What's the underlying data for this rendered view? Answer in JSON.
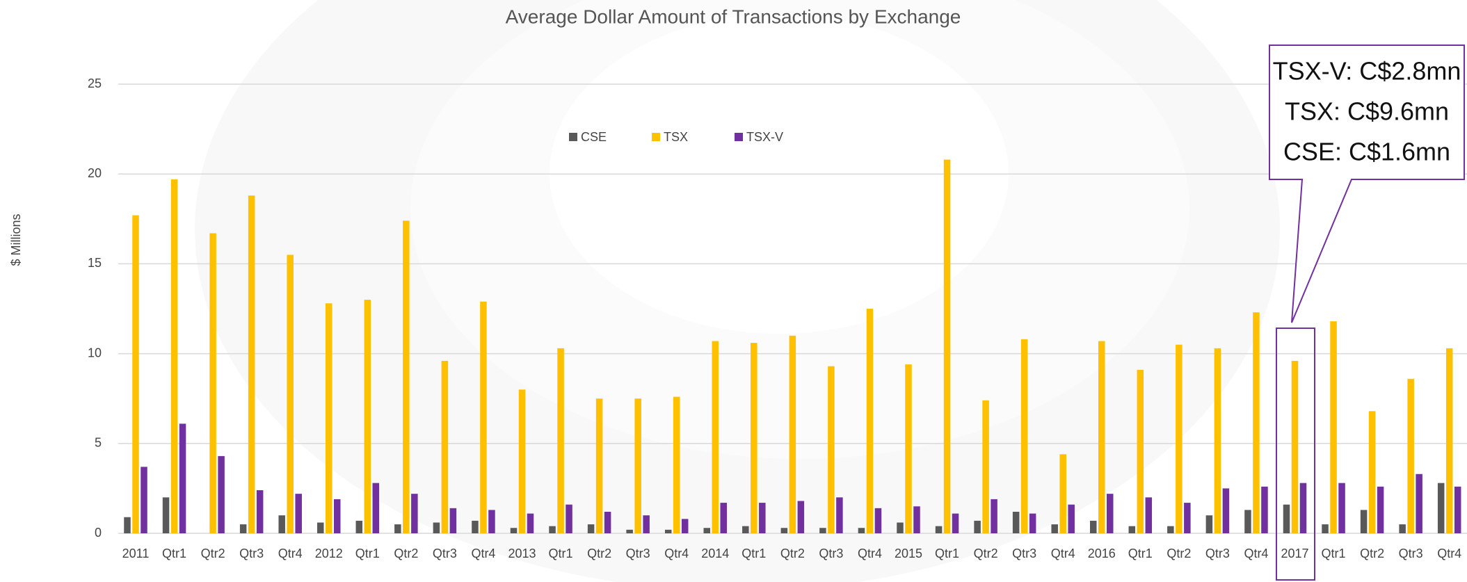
{
  "chart_data": {
    "type": "bar",
    "title": "Average Dollar Amount of Transactions by Exchange",
    "y_label": "$ Millions",
    "categories": [
      "2011",
      "Qtr1",
      "Qtr2",
      "Qtr3",
      "Qtr4",
      "2012",
      "Qtr1",
      "Qtr2",
      "Qtr3",
      "Qtr4",
      "2013",
      "Qtr1",
      "Qtr2",
      "Qtr3",
      "Qtr4",
      "2014",
      "Qtr1",
      "Qtr2",
      "Qtr3",
      "Qtr4",
      "2015",
      "Qtr1",
      "Qtr2",
      "Qtr3",
      "Qtr4",
      "2016",
      "Qtr1",
      "Qtr2",
      "Qtr3",
      "Qtr4",
      "2017",
      "Qtr1",
      "Qtr2",
      "Qtr3",
      "Qtr4"
    ],
    "series": [
      {
        "name": "CSE",
        "color": "#595959",
        "values": [
          0.9,
          2.0,
          null,
          0.5,
          1.0,
          0.6,
          0.7,
          0.5,
          0.6,
          0.7,
          0.3,
          0.4,
          0.5,
          0.2,
          0.2,
          0.3,
          0.4,
          0.3,
          0.3,
          0.3,
          0.6,
          0.4,
          0.7,
          1.2,
          0.5,
          0.7,
          0.4,
          0.4,
          1.0,
          1.3,
          1.6,
          0.5,
          1.3,
          0.5,
          2.8
        ]
      },
      {
        "name": "TSX",
        "color": "#ffc000",
        "values": [
          17.7,
          19.7,
          16.7,
          18.8,
          15.5,
          12.8,
          13.0,
          17.4,
          9.6,
          12.9,
          8.0,
          10.3,
          7.5,
          7.5,
          7.6,
          10.7,
          10.6,
          11.0,
          9.3,
          12.5,
          9.4,
          20.8,
          7.4,
          10.8,
          4.4,
          10.7,
          9.1,
          10.5,
          10.3,
          12.3,
          9.6,
          11.8,
          6.8,
          8.6,
          10.3
        ]
      },
      {
        "name": "TSX-V",
        "color": "#7030a0",
        "values": [
          3.7,
          6.1,
          4.3,
          2.4,
          2.2,
          1.9,
          2.8,
          2.2,
          1.4,
          1.3,
          1.1,
          1.6,
          1.2,
          1.0,
          0.8,
          1.7,
          1.7,
          1.8,
          2.0,
          1.4,
          1.5,
          1.1,
          1.9,
          1.1,
          1.6,
          2.2,
          2.0,
          1.7,
          2.5,
          2.6,
          2.8,
          2.8,
          2.6,
          3.3,
          2.6
        ]
      }
    ],
    "ylim": [
      0,
      25
    ],
    "yticks": [
      0,
      5,
      10,
      15,
      20,
      25
    ],
    "grid": true,
    "legend": "top",
    "annotations": [
      "TSX-V: C$2.8mn",
      "TSX: C$9.6mn",
      "CSE: C$1.6mn"
    ]
  }
}
